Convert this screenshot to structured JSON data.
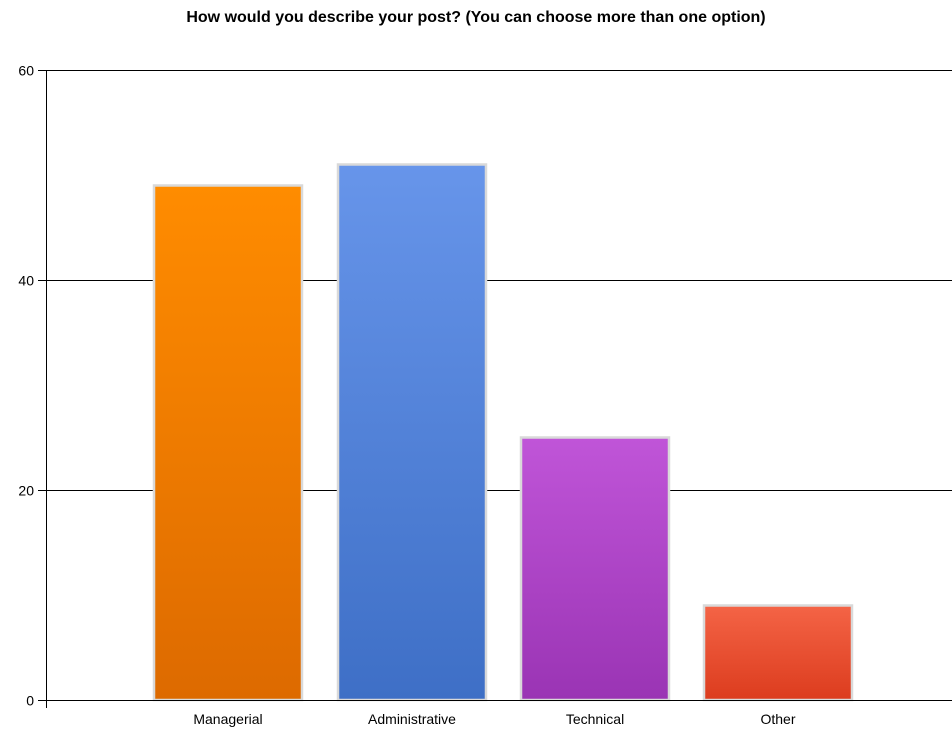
{
  "chart_data": {
    "type": "bar",
    "title": "How would you describe your post? (You can choose more than one option)",
    "xlabel": "",
    "ylabel": "",
    "categories": [
      "Managerial",
      "Administrative",
      "Technical",
      "Other"
    ],
    "values": [
      49,
      51,
      25,
      9
    ],
    "ylim": [
      0,
      60
    ],
    "yticks": [
      0,
      20,
      40,
      60
    ],
    "grid": true,
    "legend": "none",
    "bar_colors": [
      {
        "top": "#ff8c00",
        "bottom": "#dd6a00"
      },
      {
        "top": "#6795ea",
        "bottom": "#3e6fc6"
      },
      {
        "top": "#c055d8",
        "bottom": "#9a34b4"
      },
      {
        "top": "#f46446",
        "bottom": "#dc3c1e"
      }
    ],
    "bar_border_color": "#d9d9d9",
    "axis_color": "#000000",
    "grid_color": "#000000"
  }
}
